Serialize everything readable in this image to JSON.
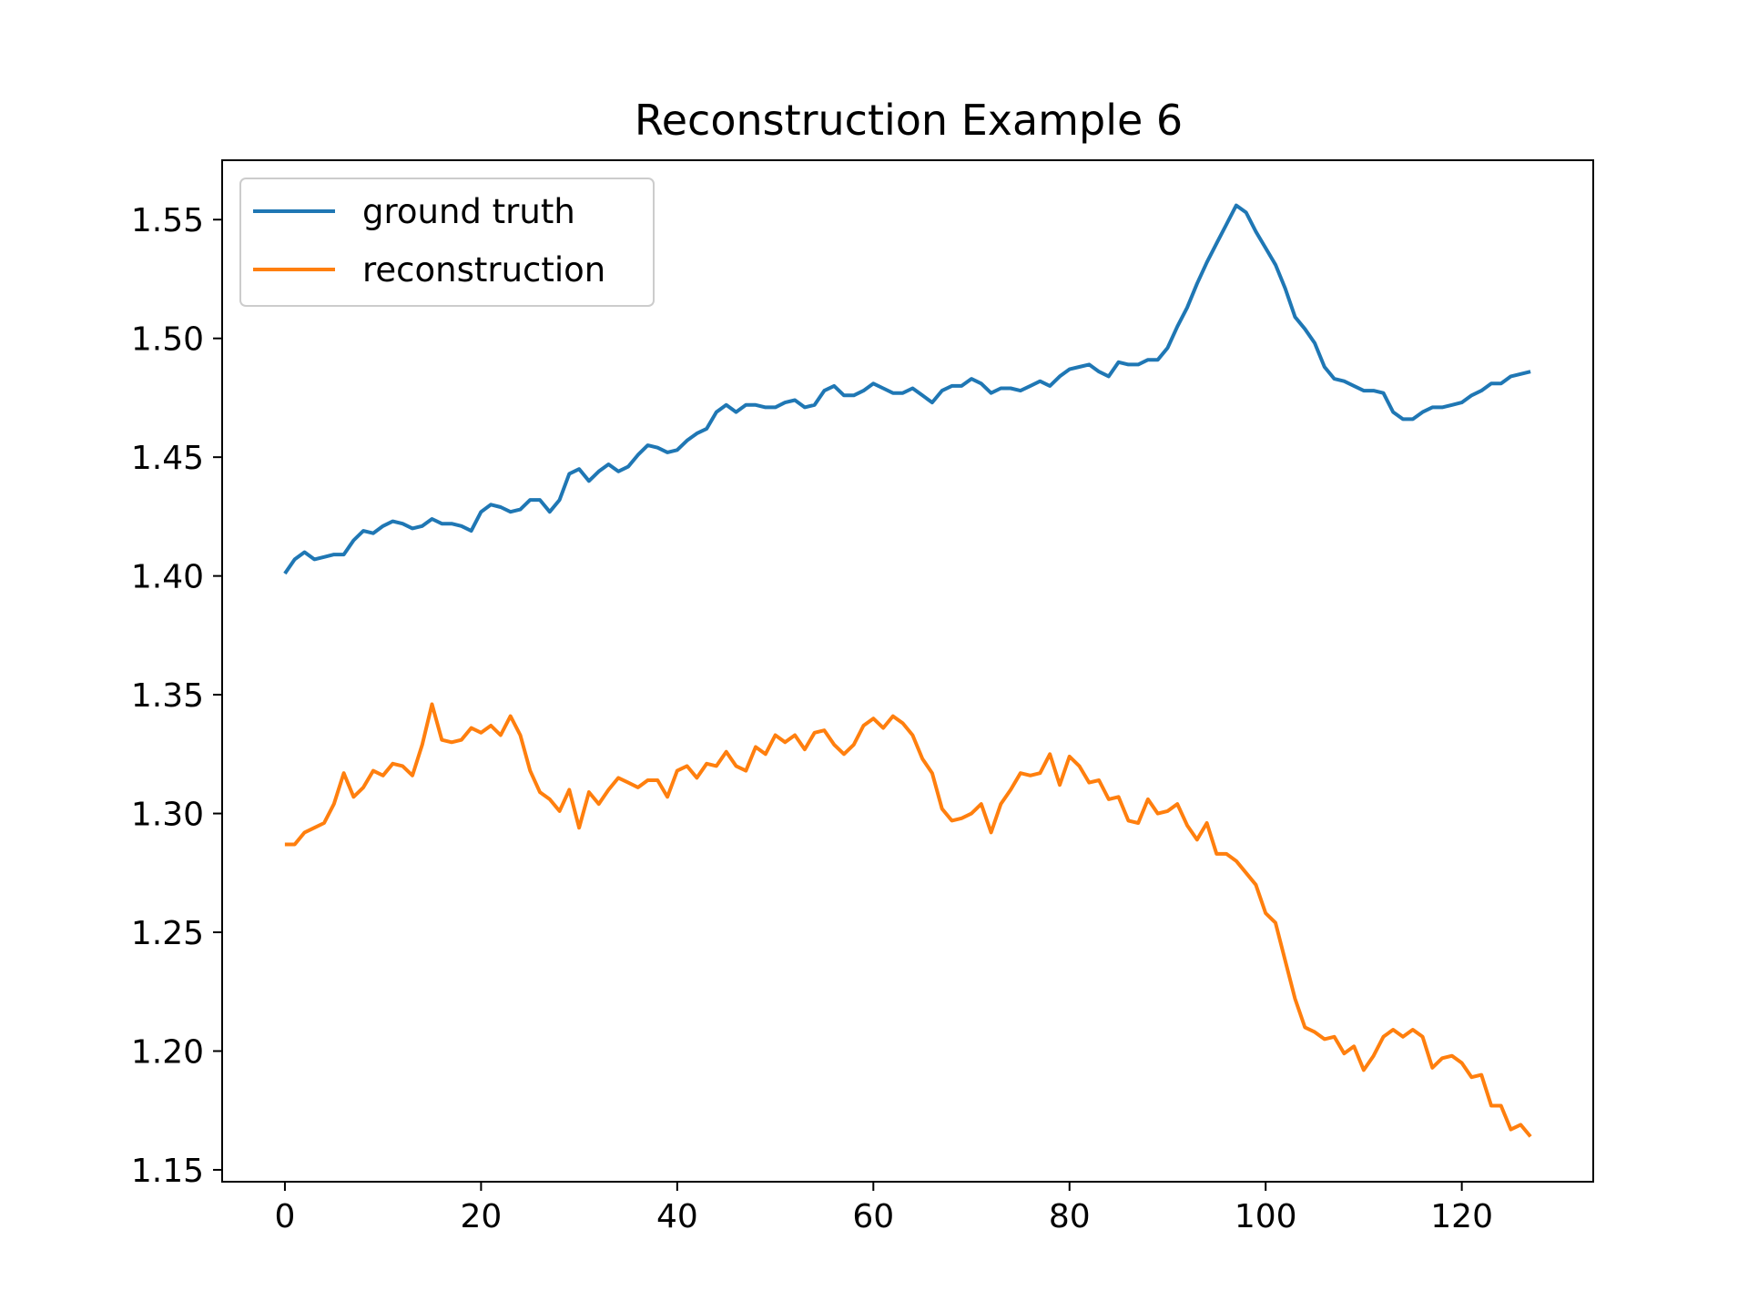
{
  "chart_data": {
    "type": "line",
    "title": "Reconstruction Example 6",
    "xlabel": "",
    "ylabel": "",
    "xlim": [
      -6.4,
      133.4
    ],
    "ylim": [
      1.145,
      1.575
    ],
    "xticks": [
      0,
      20,
      40,
      60,
      80,
      100,
      120
    ],
    "xtick_labels": [
      "0",
      "20",
      "40",
      "60",
      "80",
      "100",
      "120"
    ],
    "yticks": [
      1.15,
      1.2,
      1.25,
      1.3,
      1.35,
      1.4,
      1.45,
      1.5,
      1.55
    ],
    "ytick_labels": [
      "1.15",
      "1.20",
      "1.25",
      "1.30",
      "1.35",
      "1.40",
      "1.45",
      "1.50",
      "1.55"
    ],
    "grid": false,
    "legend_position": "top-left",
    "series": [
      {
        "name": "ground truth",
        "color": "#1f77b4",
        "values": [
          1.401,
          1.407,
          1.41,
          1.407,
          1.408,
          1.409,
          1.409,
          1.415,
          1.419,
          1.418,
          1.421,
          1.423,
          1.422,
          1.42,
          1.421,
          1.424,
          1.422,
          1.422,
          1.421,
          1.419,
          1.427,
          1.43,
          1.429,
          1.427,
          1.428,
          1.432,
          1.432,
          1.427,
          1.432,
          1.443,
          1.445,
          1.44,
          1.444,
          1.447,
          1.444,
          1.446,
          1.451,
          1.455,
          1.454,
          1.452,
          1.453,
          1.457,
          1.46,
          1.462,
          1.469,
          1.472,
          1.469,
          1.472,
          1.472,
          1.471,
          1.471,
          1.473,
          1.474,
          1.471,
          1.472,
          1.478,
          1.48,
          1.476,
          1.476,
          1.478,
          1.481,
          1.479,
          1.477,
          1.477,
          1.479,
          1.476,
          1.473,
          1.478,
          1.48,
          1.48,
          1.483,
          1.481,
          1.477,
          1.479,
          1.479,
          1.478,
          1.48,
          1.482,
          1.48,
          1.484,
          1.487,
          1.488,
          1.489,
          1.486,
          1.484,
          1.49,
          1.489,
          1.489,
          1.491,
          1.491,
          1.496,
          1.505,
          1.513,
          1.523,
          1.532,
          1.54,
          1.548,
          1.556,
          1.553,
          1.545,
          1.538,
          1.531,
          1.521,
          1.509,
          1.504,
          1.498,
          1.488,
          1.483,
          1.482,
          1.48,
          1.478,
          1.478,
          1.477,
          1.469,
          1.466,
          1.466,
          1.469,
          1.471,
          1.471,
          1.472,
          1.473,
          1.476,
          1.478,
          1.481,
          1.481,
          1.484,
          1.485,
          1.486
        ]
      },
      {
        "name": "reconstruction",
        "color": "#ff7f0e",
        "values": [
          1.287,
          1.287,
          1.292,
          1.294,
          1.296,
          1.304,
          1.317,
          1.307,
          1.311,
          1.318,
          1.316,
          1.321,
          1.32,
          1.316,
          1.329,
          1.346,
          1.331,
          1.33,
          1.331,
          1.336,
          1.334,
          1.337,
          1.333,
          1.341,
          1.333,
          1.318,
          1.309,
          1.306,
          1.301,
          1.31,
          1.294,
          1.309,
          1.304,
          1.31,
          1.315,
          1.313,
          1.311,
          1.314,
          1.314,
          1.307,
          1.318,
          1.32,
          1.315,
          1.321,
          1.32,
          1.326,
          1.32,
          1.318,
          1.328,
          1.325,
          1.333,
          1.33,
          1.333,
          1.327,
          1.334,
          1.335,
          1.329,
          1.325,
          1.329,
          1.337,
          1.34,
          1.336,
          1.341,
          1.338,
          1.333,
          1.323,
          1.317,
          1.302,
          1.297,
          1.298,
          1.3,
          1.304,
          1.292,
          1.304,
          1.31,
          1.317,
          1.316,
          1.317,
          1.325,
          1.312,
          1.324,
          1.32,
          1.313,
          1.314,
          1.306,
          1.307,
          1.297,
          1.296,
          1.306,
          1.3,
          1.301,
          1.304,
          1.295,
          1.289,
          1.296,
          1.283,
          1.283,
          1.28,
          1.275,
          1.27,
          1.258,
          1.254,
          1.238,
          1.222,
          1.21,
          1.208,
          1.205,
          1.206,
          1.199,
          1.202,
          1.192,
          1.198,
          1.206,
          1.209,
          1.206,
          1.209,
          1.206,
          1.193,
          1.197,
          1.198,
          1.195,
          1.189,
          1.19,
          1.177,
          1.177,
          1.167,
          1.169,
          1.164
        ]
      }
    ]
  }
}
